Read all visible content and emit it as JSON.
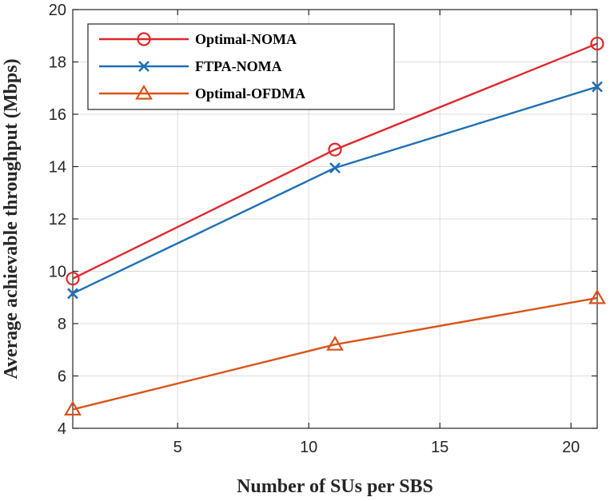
{
  "chart_data": {
    "type": "line",
    "title": "",
    "xlabel": "Number of SUs per SBS",
    "ylabel": "Average achievable throughput (Mbps)",
    "xlim": [
      1,
      21
    ],
    "ylim": [
      4,
      20
    ],
    "xticks": [
      5,
      10,
      15,
      20
    ],
    "yticks": [
      4,
      6,
      8,
      10,
      12,
      14,
      16,
      18,
      20
    ],
    "grid": true,
    "legend_position": "top-left",
    "x": [
      1,
      11,
      21
    ],
    "series": [
      {
        "name": "Optimal-NOMA",
        "values": [
          9.72,
          14.65,
          18.7
        ],
        "color": "#e0262a",
        "marker": "circle"
      },
      {
        "name": "FTPA-NOMA",
        "values": [
          9.15,
          13.95,
          17.05
        ],
        "color": "#1f6fb5",
        "marker": "x"
      },
      {
        "name": "Optimal-OFDMA",
        "values": [
          4.72,
          7.2,
          8.98
        ],
        "color": "#d95319",
        "marker": "triangle"
      }
    ]
  }
}
